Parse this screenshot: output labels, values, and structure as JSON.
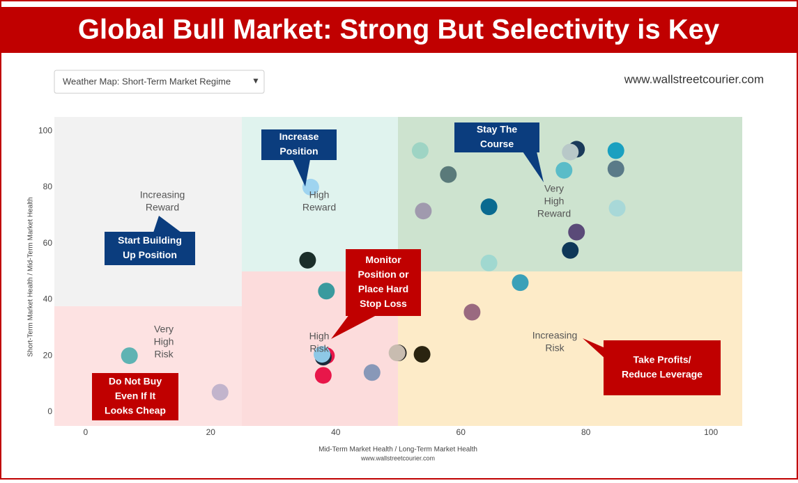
{
  "chart_data": {
    "type": "scatter",
    "title": "Global Bull Market: Strong But Selectivity is Key",
    "dropdown": "Weather Map: Short-Term Market Regime",
    "dropdown_arrow": "▼",
    "watermark": "www.wallstreetcourier.com",
    "x_label": "Mid-Term Market Health / Long-Term Market Health",
    "x_sublabel": "www.wallstreetcourier.com",
    "y_label": "Short-Term Market Health / Mid-Term Market Health",
    "xlim": [
      -5,
      105
    ],
    "ylim": [
      -5,
      105
    ],
    "xticks": [
      0,
      20,
      40,
      60,
      80,
      100
    ],
    "yticks": [
      0,
      20,
      40,
      60,
      80,
      100
    ],
    "grid": false,
    "series": [
      {
        "x": [
          7,
          21.5,
          35.5,
          36,
          38.5,
          38.5,
          38,
          37.8,
          38,
          45.8,
          50,
          49.8,
          53.8,
          53.5,
          54,
          58,
          64.5,
          64.5,
          61.8,
          69.5,
          76.5,
          78.5,
          77.5,
          78.5,
          77.5,
          84.8,
          84.8,
          85
        ],
        "y": [
          20,
          7,
          54,
          80,
          43,
          20,
          19.5,
          20.5,
          13,
          14,
          21,
          21,
          20.5,
          93,
          71.5,
          84.5,
          73,
          53,
          35.5,
          46,
          86,
          93.5,
          92.5,
          64,
          57.5,
          93,
          86.5,
          72.5
        ],
        "colors": [
          "#5fb3b3",
          "#c2b4cc",
          "#1b2e2a",
          "#9fd4f0",
          "#3a9a9e",
          "#e8174a",
          "#1a2a3a",
          "#8ec8e6",
          "#e8174a",
          "#8898b8",
          "#222222",
          "#c8bcb0",
          "#2a2410",
          "#9ed4c4",
          "#a09aae",
          "#5a7a7a",
          "#0a6a90",
          "#a0d8d0",
          "#9a6a80",
          "#3aa0b8",
          "#5abcc8",
          "#1a3a5a",
          "#b8c8c8",
          "#5a4a78",
          "#0e3858",
          "#1aa0c0",
          "#5a7a88",
          "#a8d8d8"
        ]
      }
    ],
    "region_labels": [
      [
        "Increasing",
        "Reward"
      ],
      [
        "High",
        "Reward"
      ],
      [
        "Very",
        "High",
        "Reward"
      ],
      [
        "Very",
        "High",
        "Risk"
      ],
      [
        "High",
        "Risk"
      ],
      [
        "Increasing",
        "Risk"
      ]
    ],
    "callouts": [
      [
        "Increase",
        "Position"
      ],
      [
        "Stay The",
        "Course"
      ],
      [
        "Start Building",
        "Up Position"
      ],
      [
        "Monitor",
        "Position or",
        "Place Hard",
        "Stop Loss"
      ],
      [
        "Do Not Buy",
        "Even If It",
        "Looks Cheap"
      ],
      [
        "Take Profits/",
        "Reduce Leverage"
      ]
    ]
  }
}
